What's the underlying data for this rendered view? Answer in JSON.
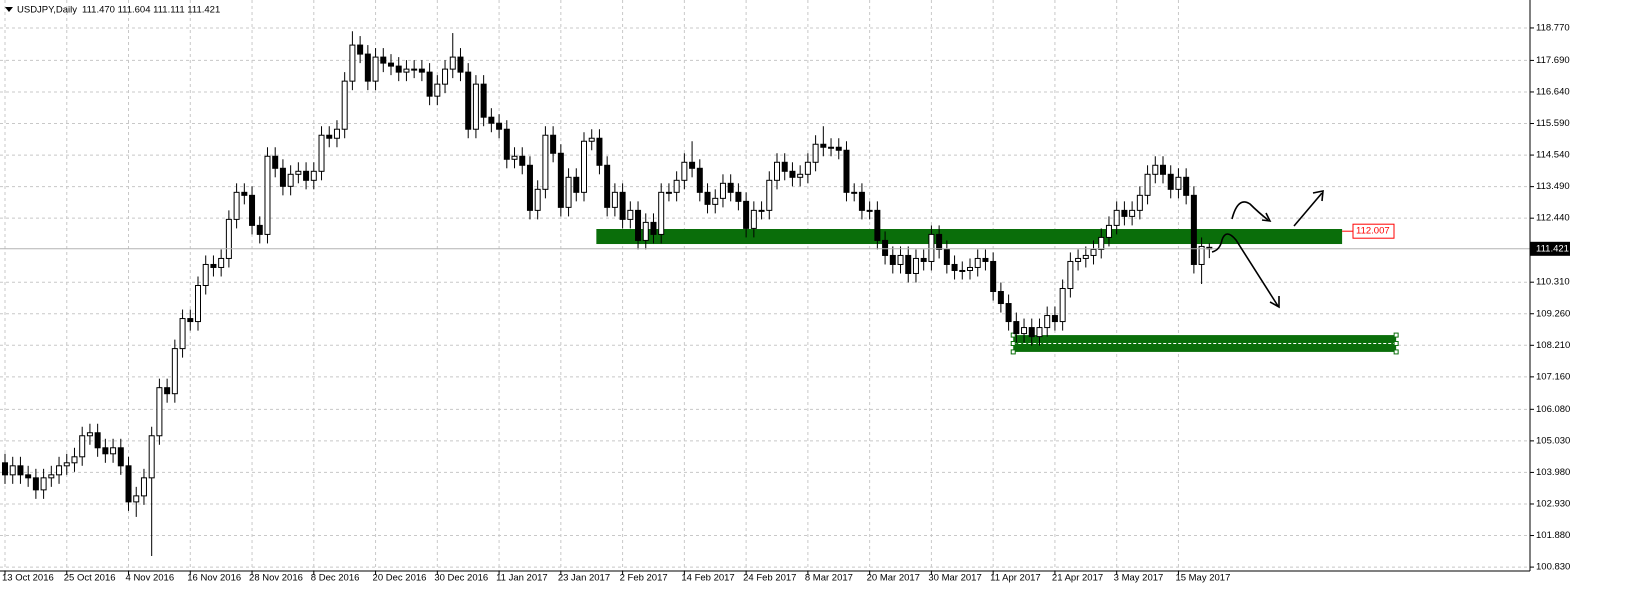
{
  "chart_data": {
    "type": "candlestick",
    "title": "USDJPY,Daily",
    "ohlc_text": "111.470 111.604 111.111 111.421",
    "ylim": [
      100.7,
      119.7
    ],
    "yticks": [
      {
        "value": 118.77,
        "label": "118.770"
      },
      {
        "value": 117.69,
        "label": "117.690"
      },
      {
        "value": 116.64,
        "label": "116.640"
      },
      {
        "value": 115.59,
        "label": "115.590"
      },
      {
        "value": 114.54,
        "label": "114.540"
      },
      {
        "value": 113.49,
        "label": "113.490"
      },
      {
        "value": 112.44,
        "label": "112.440"
      },
      {
        "value": 110.31,
        "label": "110.310"
      },
      {
        "value": 109.26,
        "label": "109.260"
      },
      {
        "value": 108.21,
        "label": "108.210"
      },
      {
        "value": 107.16,
        "label": "107.160"
      },
      {
        "value": 106.08,
        "label": "106.080"
      },
      {
        "value": 105.03,
        "label": "105.030"
      },
      {
        "value": 103.98,
        "label": "103.980"
      },
      {
        "value": 102.93,
        "label": "102.930"
      },
      {
        "value": 101.88,
        "label": "101.880"
      },
      {
        "value": 100.83,
        "label": "100.830"
      }
    ],
    "grid": true,
    "bull_color": "#ffffff",
    "bear_color": "#000000",
    "price_line": {
      "value": 111.421,
      "label": "111.421"
    },
    "level": {
      "value": 112.007,
      "label": "112.007",
      "color": "#ff0000"
    },
    "zones": [
      {
        "top": 112.08,
        "bottom": 111.58,
        "from_bar": 76.6,
        "to_bar": 173.2,
        "color": "#0a6e0a"
      },
      {
        "top": 108.55,
        "bottom": 107.99,
        "from_bar": 130.6,
        "to_bar": 180.2,
        "color": "#0a6e0a"
      }
    ],
    "categories": [
      "13 Oct 2016",
      null,
      null,
      null,
      null,
      null,
      null,
      null,
      "25 Oct 2016",
      null,
      null,
      null,
      null,
      null,
      null,
      null,
      "4 Nov 2016",
      null,
      null,
      null,
      null,
      null,
      null,
      null,
      "16 Nov 2016",
      null,
      null,
      null,
      null,
      null,
      null,
      null,
      "28 Nov 2016",
      null,
      null,
      null,
      null,
      null,
      null,
      null,
      "8 Dec 2016",
      null,
      null,
      null,
      null,
      null,
      null,
      null,
      "20 Dec 2016",
      null,
      null,
      null,
      null,
      null,
      null,
      null,
      "30 Dec 2016",
      null,
      null,
      null,
      null,
      null,
      null,
      null,
      "11 Jan 2017",
      null,
      null,
      null,
      null,
      null,
      null,
      null,
      "23 Jan 2017",
      null,
      null,
      null,
      null,
      null,
      null,
      null,
      "2 Feb 2017",
      null,
      null,
      null,
      null,
      null,
      null,
      null,
      "14 Feb 2017",
      null,
      null,
      null,
      null,
      null,
      null,
      null,
      "24 Feb 2017",
      null,
      null,
      null,
      null,
      null,
      null,
      null,
      "8 Mar 2017",
      null,
      null,
      null,
      null,
      null,
      null,
      null,
      "20 Mar 2017",
      null,
      null,
      null,
      null,
      null,
      null,
      null,
      "30 Mar 2017",
      null,
      null,
      null,
      null,
      null,
      null,
      null,
      "11 Apr 2017",
      null,
      null,
      null,
      null,
      null,
      null,
      null,
      "21 Apr 2017",
      null,
      null,
      null,
      null,
      null,
      null,
      null,
      "3 May 2017",
      null,
      null,
      null,
      null,
      null,
      null,
      null,
      "15 May 2017",
      null,
      null,
      null,
      null
    ],
    "candles": [
      [
        104.3,
        104.6,
        103.6,
        103.9
      ],
      [
        103.9,
        104.5,
        103.6,
        104.2
      ],
      [
        104.2,
        104.5,
        103.6,
        103.9
      ],
      [
        103.9,
        104.2,
        103.5,
        103.8
      ],
      [
        103.8,
        104.1,
        103.1,
        103.4
      ],
      [
        103.4,
        104.1,
        103.1,
        103.8
      ],
      [
        103.8,
        104.2,
        103.5,
        103.9
      ],
      [
        103.9,
        104.5,
        103.6,
        104.2
      ],
      [
        104.2,
        104.6,
        103.9,
        104.3
      ],
      [
        104.3,
        104.8,
        104.0,
        104.5
      ],
      [
        104.5,
        105.5,
        104.2,
        105.2
      ],
      [
        105.2,
        105.6,
        104.9,
        105.3
      ],
      [
        105.3,
        105.6,
        104.5,
        104.8
      ],
      [
        104.8,
        105.1,
        104.3,
        104.6
      ],
      [
        104.6,
        105.1,
        104.3,
        104.8
      ],
      [
        104.8,
        105.1,
        103.9,
        104.2
      ],
      [
        104.2,
        104.5,
        102.7,
        103.0
      ],
      [
        103.0,
        103.5,
        102.5,
        103.2
      ],
      [
        103.2,
        104.1,
        102.9,
        103.8
      ],
      [
        103.8,
        105.5,
        101.2,
        105.2
      ],
      [
        105.2,
        107.1,
        104.9,
        106.8
      ],
      [
        106.8,
        107.1,
        106.3,
        106.6
      ],
      [
        106.6,
        108.4,
        106.3,
        108.1
      ],
      [
        108.1,
        109.4,
        107.8,
        109.1
      ],
      [
        109.1,
        109.4,
        108.7,
        109.0
      ],
      [
        109.0,
        110.5,
        108.7,
        110.2
      ],
      [
        110.2,
        111.2,
        109.9,
        110.9
      ],
      [
        110.9,
        111.2,
        110.5,
        110.8
      ],
      [
        110.8,
        111.4,
        110.5,
        111.1
      ],
      [
        111.1,
        112.7,
        110.8,
        112.4
      ],
      [
        112.4,
        113.6,
        112.1,
        113.3
      ],
      [
        113.3,
        113.6,
        112.9,
        113.2
      ],
      [
        113.2,
        113.5,
        111.9,
        112.2
      ],
      [
        112.2,
        112.5,
        111.6,
        111.9
      ],
      [
        111.9,
        114.8,
        111.6,
        114.5
      ],
      [
        114.5,
        114.8,
        113.8,
        114.1
      ],
      [
        114.1,
        114.4,
        113.2,
        113.5
      ],
      [
        113.5,
        114.2,
        113.2,
        113.9
      ],
      [
        113.9,
        114.3,
        113.6,
        114.0
      ],
      [
        114.0,
        114.3,
        113.4,
        113.7
      ],
      [
        113.7,
        114.3,
        113.4,
        114.0
      ],
      [
        114.0,
        115.5,
        113.7,
        115.2
      ],
      [
        115.2,
        115.5,
        114.8,
        115.1
      ],
      [
        115.1,
        115.7,
        114.8,
        115.4
      ],
      [
        115.4,
        117.3,
        115.1,
        117.0
      ],
      [
        117.0,
        118.66,
        116.7,
        118.2
      ],
      [
        118.2,
        118.5,
        117.6,
        117.9
      ],
      [
        117.9,
        118.2,
        116.7,
        117.0
      ],
      [
        117.0,
        118.1,
        116.7,
        117.8
      ],
      [
        117.8,
        118.1,
        117.3,
        117.6
      ],
      [
        117.6,
        117.9,
        117.2,
        117.5
      ],
      [
        117.5,
        117.8,
        117.0,
        117.3
      ],
      [
        117.3,
        117.7,
        117.0,
        117.4
      ],
      [
        117.4,
        117.7,
        117.1,
        117.4
      ],
      [
        117.4,
        117.7,
        117.0,
        117.3
      ],
      [
        117.3,
        117.6,
        116.2,
        116.5
      ],
      [
        116.5,
        117.2,
        116.2,
        116.9
      ],
      [
        116.9,
        117.7,
        116.6,
        117.4
      ],
      [
        117.4,
        118.6,
        117.1,
        117.8
      ],
      [
        117.8,
        118.1,
        117.0,
        117.3
      ],
      [
        117.3,
        117.6,
        115.1,
        115.4
      ],
      [
        115.4,
        117.2,
        115.1,
        116.9
      ],
      [
        116.9,
        117.2,
        115.5,
        115.8
      ],
      [
        115.8,
        116.1,
        115.3,
        115.6
      ],
      [
        115.6,
        115.9,
        115.1,
        115.4
      ],
      [
        115.4,
        115.7,
        114.1,
        114.4
      ],
      [
        114.4,
        114.8,
        114.1,
        114.5
      ],
      [
        114.5,
        114.8,
        113.9,
        114.2
      ],
      [
        114.2,
        114.5,
        112.4,
        112.7
      ],
      [
        112.7,
        113.7,
        112.4,
        113.4
      ],
      [
        113.4,
        115.5,
        113.1,
        115.2
      ],
      [
        115.2,
        115.5,
        114.3,
        114.6
      ],
      [
        114.6,
        114.9,
        112.5,
        112.8
      ],
      [
        112.8,
        114.1,
        112.5,
        113.8
      ],
      [
        113.8,
        114.1,
        113.0,
        113.3
      ],
      [
        113.3,
        115.3,
        113.0,
        115.0
      ],
      [
        115.0,
        115.4,
        114.7,
        115.1
      ],
      [
        115.1,
        115.4,
        113.9,
        114.2
      ],
      [
        114.2,
        114.5,
        112.5,
        112.8
      ],
      [
        112.8,
        113.6,
        112.5,
        113.3
      ],
      [
        113.3,
        113.6,
        112.1,
        112.4
      ],
      [
        112.4,
        113.0,
        112.1,
        112.7
      ],
      [
        112.7,
        113.0,
        111.4,
        111.7
      ],
      [
        111.7,
        112.6,
        111.4,
        112.3
      ],
      [
        112.3,
        112.6,
        111.6,
        111.9
      ],
      [
        111.9,
        113.6,
        111.6,
        113.3
      ],
      [
        113.3,
        113.6,
        113.0,
        113.3
      ],
      [
        113.3,
        114.0,
        113.0,
        113.7
      ],
      [
        113.7,
        114.6,
        113.4,
        114.3
      ],
      [
        114.3,
        115.0,
        113.8,
        114.1
      ],
      [
        114.1,
        114.4,
        113.0,
        113.3
      ],
      [
        113.3,
        113.6,
        112.6,
        112.9
      ],
      [
        112.9,
        113.4,
        112.6,
        113.1
      ],
      [
        113.1,
        113.9,
        112.8,
        113.6
      ],
      [
        113.6,
        113.9,
        113.0,
        113.3
      ],
      [
        113.3,
        113.6,
        112.7,
        113.0
      ],
      [
        113.0,
        113.3,
        111.8,
        112.1
      ],
      [
        112.1,
        113.0,
        111.8,
        112.7
      ],
      [
        112.7,
        113.0,
        112.4,
        112.7
      ],
      [
        112.7,
        114.0,
        112.4,
        113.7
      ],
      [
        113.7,
        114.6,
        113.4,
        114.3
      ],
      [
        114.3,
        114.6,
        113.7,
        114.0
      ],
      [
        114.0,
        114.3,
        113.5,
        113.8
      ],
      [
        113.8,
        114.2,
        113.5,
        113.9
      ],
      [
        113.9,
        114.6,
        113.6,
        114.3
      ],
      [
        114.3,
        115.2,
        114.0,
        114.9
      ],
      [
        114.9,
        115.5,
        114.5,
        114.8
      ],
      [
        114.8,
        115.1,
        114.5,
        114.8
      ],
      [
        114.8,
        115.1,
        114.4,
        114.7
      ],
      [
        114.7,
        115.0,
        113.0,
        113.3
      ],
      [
        113.3,
        113.6,
        113.0,
        113.3
      ],
      [
        113.3,
        113.6,
        112.4,
        112.7
      ],
      [
        112.7,
        113.0,
        112.4,
        112.7
      ],
      [
        112.7,
        113.0,
        111.4,
        111.7
      ],
      [
        111.7,
        112.0,
        110.9,
        111.2
      ],
      [
        111.2,
        111.5,
        110.6,
        110.9
      ],
      [
        110.9,
        111.5,
        110.6,
        111.2
      ],
      [
        111.2,
        111.5,
        110.3,
        110.6
      ],
      [
        110.6,
        111.4,
        110.3,
        111.1
      ],
      [
        111.1,
        111.4,
        110.7,
        111.0
      ],
      [
        111.0,
        112.2,
        110.7,
        111.9
      ],
      [
        111.9,
        112.2,
        111.1,
        111.4
      ],
      [
        111.4,
        111.7,
        110.6,
        110.9
      ],
      [
        110.9,
        111.2,
        110.4,
        110.7
      ],
      [
        110.7,
        111.0,
        110.4,
        110.7
      ],
      [
        110.7,
        111.1,
        110.4,
        110.8
      ],
      [
        110.8,
        111.4,
        110.5,
        111.1
      ],
      [
        111.1,
        111.4,
        110.7,
        111.0
      ],
      [
        111.0,
        111.3,
        109.7,
        110.0
      ],
      [
        110.0,
        110.3,
        109.3,
        109.6
      ],
      [
        109.6,
        109.9,
        108.7,
        109.0
      ],
      [
        109.0,
        109.3,
        108.3,
        108.6
      ],
      [
        108.6,
        109.1,
        108.3,
        108.8
      ],
      [
        108.8,
        109.1,
        108.2,
        108.5
      ],
      [
        108.5,
        109.1,
        108.2,
        108.8
      ],
      [
        108.8,
        109.5,
        108.5,
        109.2
      ],
      [
        109.2,
        109.5,
        108.7,
        109.0
      ],
      [
        109.0,
        110.4,
        108.7,
        110.1
      ],
      [
        110.1,
        111.3,
        109.8,
        111.0
      ],
      [
        111.0,
        111.4,
        110.7,
        111.1
      ],
      [
        111.1,
        111.5,
        110.8,
        111.2
      ],
      [
        111.2,
        111.7,
        110.9,
        111.4
      ],
      [
        111.4,
        112.1,
        111.1,
        111.8
      ],
      [
        111.8,
        112.5,
        111.5,
        112.2
      ],
      [
        112.2,
        113.0,
        111.9,
        112.7
      ],
      [
        112.7,
        113.0,
        112.2,
        112.5
      ],
      [
        112.5,
        113.0,
        112.2,
        112.7
      ],
      [
        112.7,
        113.5,
        112.4,
        113.2
      ],
      [
        113.2,
        114.2,
        112.9,
        113.9
      ],
      [
        113.9,
        114.5,
        113.6,
        114.2
      ],
      [
        114.2,
        114.5,
        113.6,
        113.9
      ],
      [
        113.9,
        114.2,
        113.1,
        113.4
      ],
      [
        113.4,
        114.1,
        113.1,
        113.8
      ],
      [
        113.8,
        114.1,
        112.9,
        113.2
      ],
      [
        113.2,
        113.5,
        110.6,
        110.9
      ],
      [
        110.9,
        111.8,
        110.25,
        111.5
      ],
      [
        111.47,
        111.604,
        111.111,
        111.421
      ]
    ]
  }
}
